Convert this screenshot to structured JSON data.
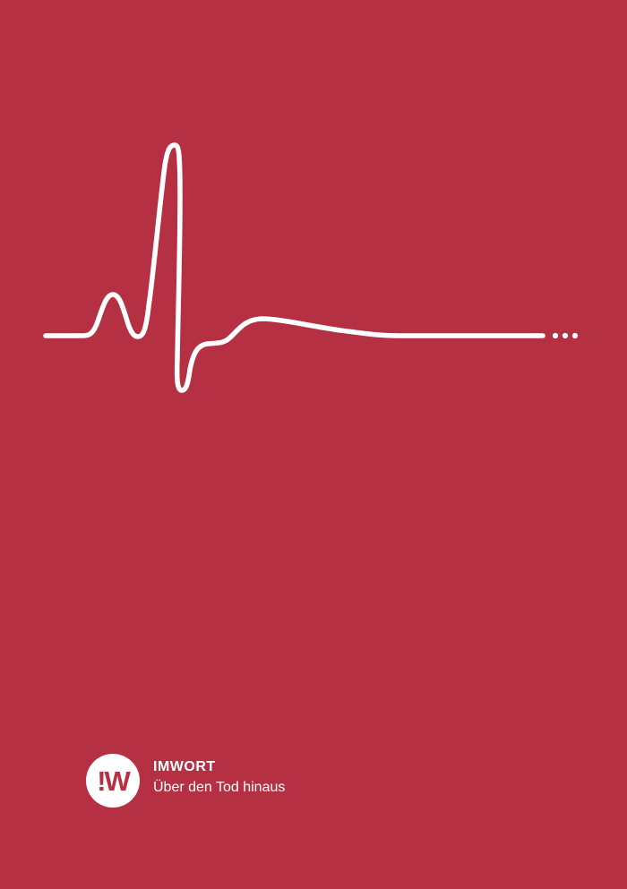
{
  "colors": {
    "background": "#b63043",
    "foreground": "#ffffff"
  },
  "icons": {
    "heartbeat": "ecg-heartbeat-line-icon",
    "logo": "imwort-logo-icon"
  },
  "brand": {
    "logo_text": "!W",
    "name": "IMWORT",
    "tagline": "Über den Tod hinaus"
  }
}
